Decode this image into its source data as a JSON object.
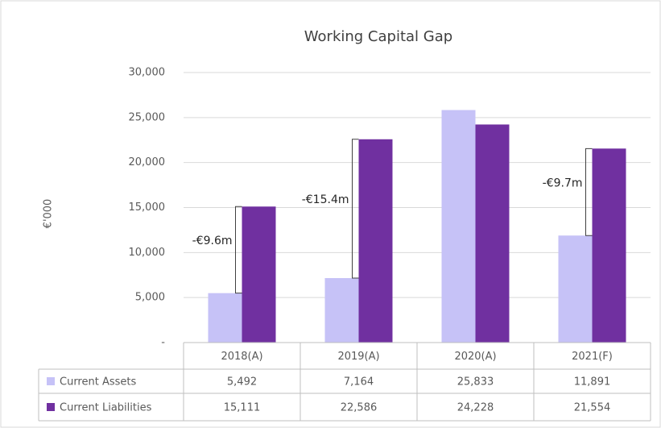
{
  "chart_data": {
    "type": "bar",
    "title": "Working Capital Gap",
    "ylabel": "€'000",
    "categories": [
      "2018(A)",
      "2019(A)",
      "2020(A)",
      "2021(F)"
    ],
    "series": [
      {
        "name": "Current Assets",
        "color": "#c6c2f7",
        "values": [
          5492,
          7164,
          25833,
          11891
        ],
        "value_labels": [
          "5,492",
          "7,164",
          "25,833",
          "11,891"
        ]
      },
      {
        "name": "Current Liabilities",
        "color": "#7030a0",
        "values": [
          15111,
          22586,
          24228,
          21554
        ],
        "value_labels": [
          "15,111",
          "22,586",
          "24,228",
          "21,554"
        ]
      }
    ],
    "annotations": [
      "-€9.6m",
      "-€15.4m",
      null,
      "-€9.7m"
    ],
    "ylim": [
      0,
      30000
    ],
    "yticks": [
      {
        "value": 0,
        "label": "-"
      },
      {
        "value": 5000,
        "label": "5,000"
      },
      {
        "value": 10000,
        "label": "10,000"
      },
      {
        "value": 15000,
        "label": "15,000"
      },
      {
        "value": 20000,
        "label": "20,000"
      },
      {
        "value": 25000,
        "label": "25,000"
      },
      {
        "value": 30000,
        "label": "30,000"
      }
    ],
    "grid": true
  }
}
